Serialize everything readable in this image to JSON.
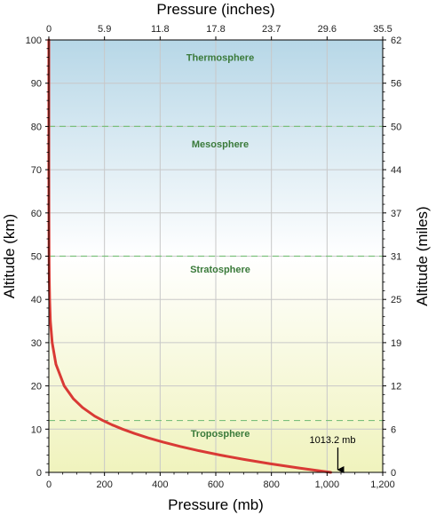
{
  "chart_data": {
    "type": "line",
    "x_bottom": {
      "label": "Pressure (mb)",
      "range": [
        0,
        1200
      ],
      "ticks": [
        0,
        200,
        400,
        600,
        800,
        1000,
        1200
      ],
      "tick_labels": [
        "0",
        "200",
        "400",
        "600",
        "800",
        "1,000",
        "1,200"
      ]
    },
    "x_top": {
      "label": "Pressure (inches)",
      "tick_labels": [
        "0",
        "5.9",
        "11.8",
        "17.8",
        "23.7",
        "29.6",
        "35.5"
      ]
    },
    "y_left": {
      "label": "Altitude (km)",
      "range": [
        0,
        100
      ],
      "ticks": [
        0,
        10,
        20,
        30,
        40,
        50,
        60,
        70,
        80,
        90,
        100
      ]
    },
    "y_right": {
      "label": "Altitude (miles)",
      "tick_labels": [
        "0",
        "6",
        "12",
        "19",
        "25",
        "31",
        "37",
        "44",
        "50",
        "56",
        "62"
      ]
    },
    "grid": true,
    "series": [
      {
        "color": "#d93a35",
        "x": [
          1013.2,
          900,
          795,
          701,
          616,
          540,
          472,
          411,
          356,
          308,
          265,
          227,
          194,
          165,
          121,
          88.5,
          55.3,
          25.5,
          12,
          5.5,
          2.9,
          1.5,
          0.8,
          0.3,
          0.05,
          0.01,
          0.003,
          0.0003
        ],
        "y": [
          0,
          1,
          2,
          3,
          4,
          5,
          6,
          7,
          8,
          9,
          10,
          11,
          12,
          13,
          15,
          17,
          20,
          25,
          30,
          35,
          40,
          45,
          50,
          60,
          70,
          80,
          90,
          100
        ]
      }
    ],
    "layers": [
      {
        "label": "Thermosphere",
        "y": 96
      },
      {
        "label": "Mesosphere",
        "y": 76
      },
      {
        "label": "Stratosphere",
        "y": 47
      },
      {
        "label": "Troposphere",
        "y": 9
      }
    ],
    "boundaries": [
      12,
      50,
      80
    ],
    "annotations": [
      {
        "text": "1013.2 mb",
        "x": 1013.2,
        "y": 0
      }
    ],
    "colors": {
      "curve": "#d93a35",
      "layer_label": "#3a7a3a",
      "boundary": "#7cc07c",
      "grid": "#c8c8c8",
      "sky_top": "#b7d7e7",
      "sky_mid": "#ffffff",
      "sky_bottom": "#f0f3bd"
    }
  }
}
